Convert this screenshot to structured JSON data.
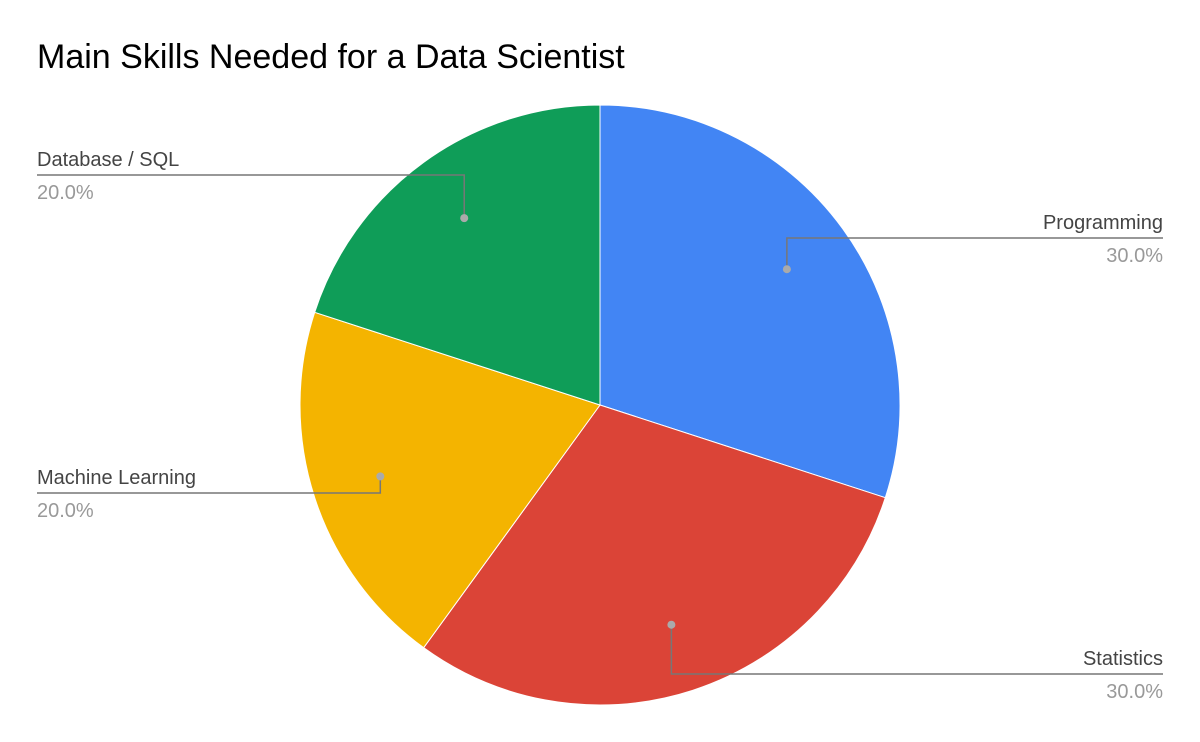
{
  "chart_data": {
    "type": "pie",
    "title": "Main Skills Needed for a Data Scientist",
    "legend": "labels-outside",
    "slices": [
      {
        "label": "Programming",
        "value": 30.0,
        "percent_label": "30.0%",
        "color": "#4285F4"
      },
      {
        "label": "Statistics",
        "value": 30.0,
        "percent_label": "30.0%",
        "color": "#DB4437"
      },
      {
        "label": "Machine Learning",
        "value": 20.0,
        "percent_label": "20.0%",
        "color": "#F4B400"
      },
      {
        "label": "Database / SQL",
        "value": 20.0,
        "percent_label": "20.0%",
        "color": "#0F9D58"
      }
    ]
  }
}
